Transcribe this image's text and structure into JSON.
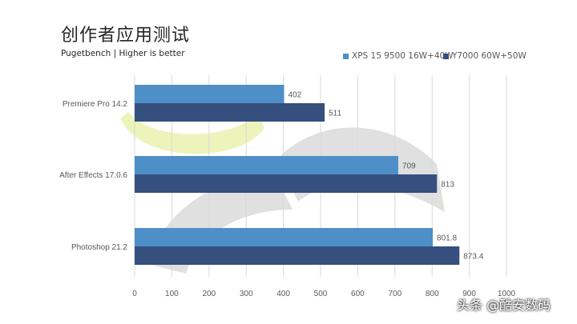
{
  "title": "创作者应用测试",
  "subtitle": "Pugetbench | Higher is better",
  "watermark": "头条 @酷安数码",
  "colors": {
    "series1": "#4f8fc8",
    "series2": "#35507e",
    "grid": "#d9d9d9",
    "tick_text": "#595959",
    "deco_green": "#eaf3b4",
    "deco_gray": "#e0e0e0"
  },
  "chart_data": {
    "type": "bar",
    "orientation": "horizontal",
    "categories": [
      "Premiere Pro 14.2",
      "After Effects 17.0.6",
      "Photoshop 21.2"
    ],
    "series": [
      {
        "name": "XPS 15 9500 16W+40W",
        "values": [
          402,
          709,
          801.8
        ],
        "labels": [
          "402",
          "709",
          "801.8"
        ]
      },
      {
        "name": "Y7000 60W+50W",
        "values": [
          511,
          813,
          873.4
        ],
        "labels": [
          "511",
          "813",
          "873.4"
        ]
      }
    ],
    "xlim": [
      0,
      1000
    ],
    "xticks": [
      0,
      100,
      200,
      300,
      400,
      500,
      600,
      700,
      800,
      900,
      1000
    ],
    "grid": true,
    "legend_position": "top-right"
  }
}
